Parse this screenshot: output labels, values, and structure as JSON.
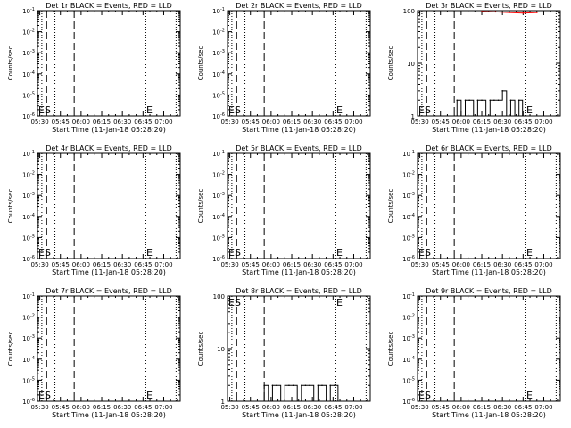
{
  "common": {
    "subtitle": "BLACK = Events, RED = LLD",
    "xlabel": "Start Time (11-Jan-18 05:28:20)",
    "ylabel": "Counts/sec",
    "xticks": [
      "05:30",
      "05:45",
      "06:00",
      "06:15",
      "06:30",
      "06:45",
      "07:00"
    ],
    "marker_start": "ES",
    "marker_end": "E",
    "colors": {
      "events": "#000000",
      "lld": "#ff0000"
    }
  },
  "chart_data": [
    {
      "type": "line",
      "title": "Det 1r BLACK = Events, RED = LLD",
      "xlabel": "Start Time (11-Jan-18 05:28:20)",
      "ylabel": "Counts/sec",
      "x_range": [
        "05:28:20",
        "07:12"
      ],
      "y_scale": "log",
      "ylim": [
        1e-06,
        0.1
      ],
      "yticks": [
        "10^-6",
        "10^-5",
        "10^-4",
        "10^-3",
        "10^-2",
        "10^-1"
      ],
      "series": []
    },
    {
      "type": "line",
      "title": "Det 2r BLACK = Events, RED = LLD",
      "xlabel": "Start Time (11-Jan-18 05:28:20)",
      "ylabel": "Counts/sec",
      "x_range": [
        "05:28:20",
        "07:12"
      ],
      "y_scale": "log",
      "ylim": [
        1e-06,
        0.1
      ],
      "yticks": [
        "10^-6",
        "10^-5",
        "10^-4",
        "10^-3",
        "10^-2",
        "10^-1"
      ],
      "series": []
    },
    {
      "type": "line",
      "title": "Det 3r BLACK = Events, RED = LLD",
      "xlabel": "Start Time (11-Jan-18 05:28:20)",
      "ylabel": "Counts/sec",
      "x_range": [
        "05:28:20",
        "07:12"
      ],
      "y_scale": "log",
      "ylim": [
        1,
        100
      ],
      "yticks": [
        "1",
        "10",
        "100"
      ],
      "series": [
        {
          "color": "#000000",
          "x": [
            "05:57",
            "06:00",
            "06:03",
            "06:06",
            "06:09",
            "06:12",
            "06:15",
            "06:18",
            "06:21",
            "06:24",
            "06:27",
            "06:30",
            "06:33",
            "06:36",
            "06:39",
            "06:42"
          ],
          "y": [
            2,
            1,
            2,
            2,
            1,
            2,
            2,
            1,
            2,
            2,
            2,
            3,
            1,
            2,
            1,
            2
          ]
        },
        {
          "color": "#ff0000",
          "x": [
            "06:15",
            "06:25",
            "06:35",
            "06:45",
            "06:55"
          ],
          "y": [
            100,
            95,
            92,
            90,
            92
          ]
        }
      ]
    },
    {
      "type": "line",
      "title": "Det 4r BLACK = Events, RED = LLD",
      "xlabel": "Start Time (11-Jan-18 05:28:20)",
      "ylabel": "Counts/sec",
      "x_range": [
        "05:28:20",
        "07:12"
      ],
      "y_scale": "log",
      "ylim": [
        1e-06,
        0.1
      ],
      "yticks": [
        "10^-6",
        "10^-5",
        "10^-4",
        "10^-3",
        "10^-2",
        "10^-1"
      ],
      "series": []
    },
    {
      "type": "line",
      "title": "Det 5r BLACK = Events, RED = LLD",
      "xlabel": "Start Time (11-Jan-18 05:28:20)",
      "ylabel": "Counts/sec",
      "x_range": [
        "05:28:20",
        "07:12"
      ],
      "y_scale": "log",
      "ylim": [
        1e-06,
        0.1
      ],
      "yticks": [
        "10^-6",
        "10^-5",
        "10^-4",
        "10^-3",
        "10^-2",
        "10^-1"
      ],
      "series": []
    },
    {
      "type": "line",
      "title": "Det 6r BLACK = Events, RED = LLD",
      "xlabel": "Start Time (11-Jan-18 05:28:20)",
      "ylabel": "Counts/sec",
      "x_range": [
        "05:28:20",
        "07:12"
      ],
      "y_scale": "log",
      "ylim": [
        1e-06,
        0.1
      ],
      "yticks": [
        "10^-6",
        "10^-5",
        "10^-4",
        "10^-3",
        "10^-2",
        "10^-1"
      ],
      "series": []
    },
    {
      "type": "line",
      "title": "Det 7r BLACK = Events, RED = LLD",
      "xlabel": "Start Time (11-Jan-18 05:28:20)",
      "ylabel": "Counts/sec",
      "x_range": [
        "05:28:20",
        "07:12"
      ],
      "y_scale": "log",
      "ylim": [
        1e-06,
        0.1
      ],
      "yticks": [
        "10^-6",
        "10^-5",
        "10^-4",
        "10^-3",
        "10^-2",
        "10^-1"
      ],
      "series": []
    },
    {
      "type": "line",
      "title": "Det 8r BLACK = Events, RED = LLD",
      "xlabel": "Start Time (11-Jan-18 05:28:20)",
      "ylabel": "Counts/sec",
      "x_range": [
        "05:28:20",
        "07:12"
      ],
      "y_scale": "log",
      "ylim": [
        1,
        100
      ],
      "yticks": [
        "1",
        "10",
        "100"
      ],
      "series": [
        {
          "color": "#000000",
          "x": [
            "05:55",
            "05:58",
            "06:01",
            "06:04",
            "06:07",
            "06:10",
            "06:13",
            "06:16",
            "06:19",
            "06:22",
            "06:25",
            "06:28",
            "06:31",
            "06:34",
            "06:37",
            "06:40",
            "06:43",
            "06:46"
          ],
          "y": [
            2,
            1,
            2,
            2,
            1,
            2,
            2,
            2,
            1,
            2,
            2,
            2,
            1,
            2,
            2,
            1,
            2,
            2
          ]
        }
      ]
    },
    {
      "type": "line",
      "title": "Det 9r BLACK = Events, RED = LLD",
      "xlabel": "Start Time (11-Jan-18 05:28:20)",
      "ylabel": "Counts/sec",
      "x_range": [
        "05:28:20",
        "07:12"
      ],
      "y_scale": "log",
      "ylim": [
        1e-06,
        0.1
      ],
      "yticks": [
        "10^-6",
        "10^-5",
        "10^-4",
        "10^-3",
        "10^-2",
        "10^-1"
      ],
      "series": []
    }
  ]
}
